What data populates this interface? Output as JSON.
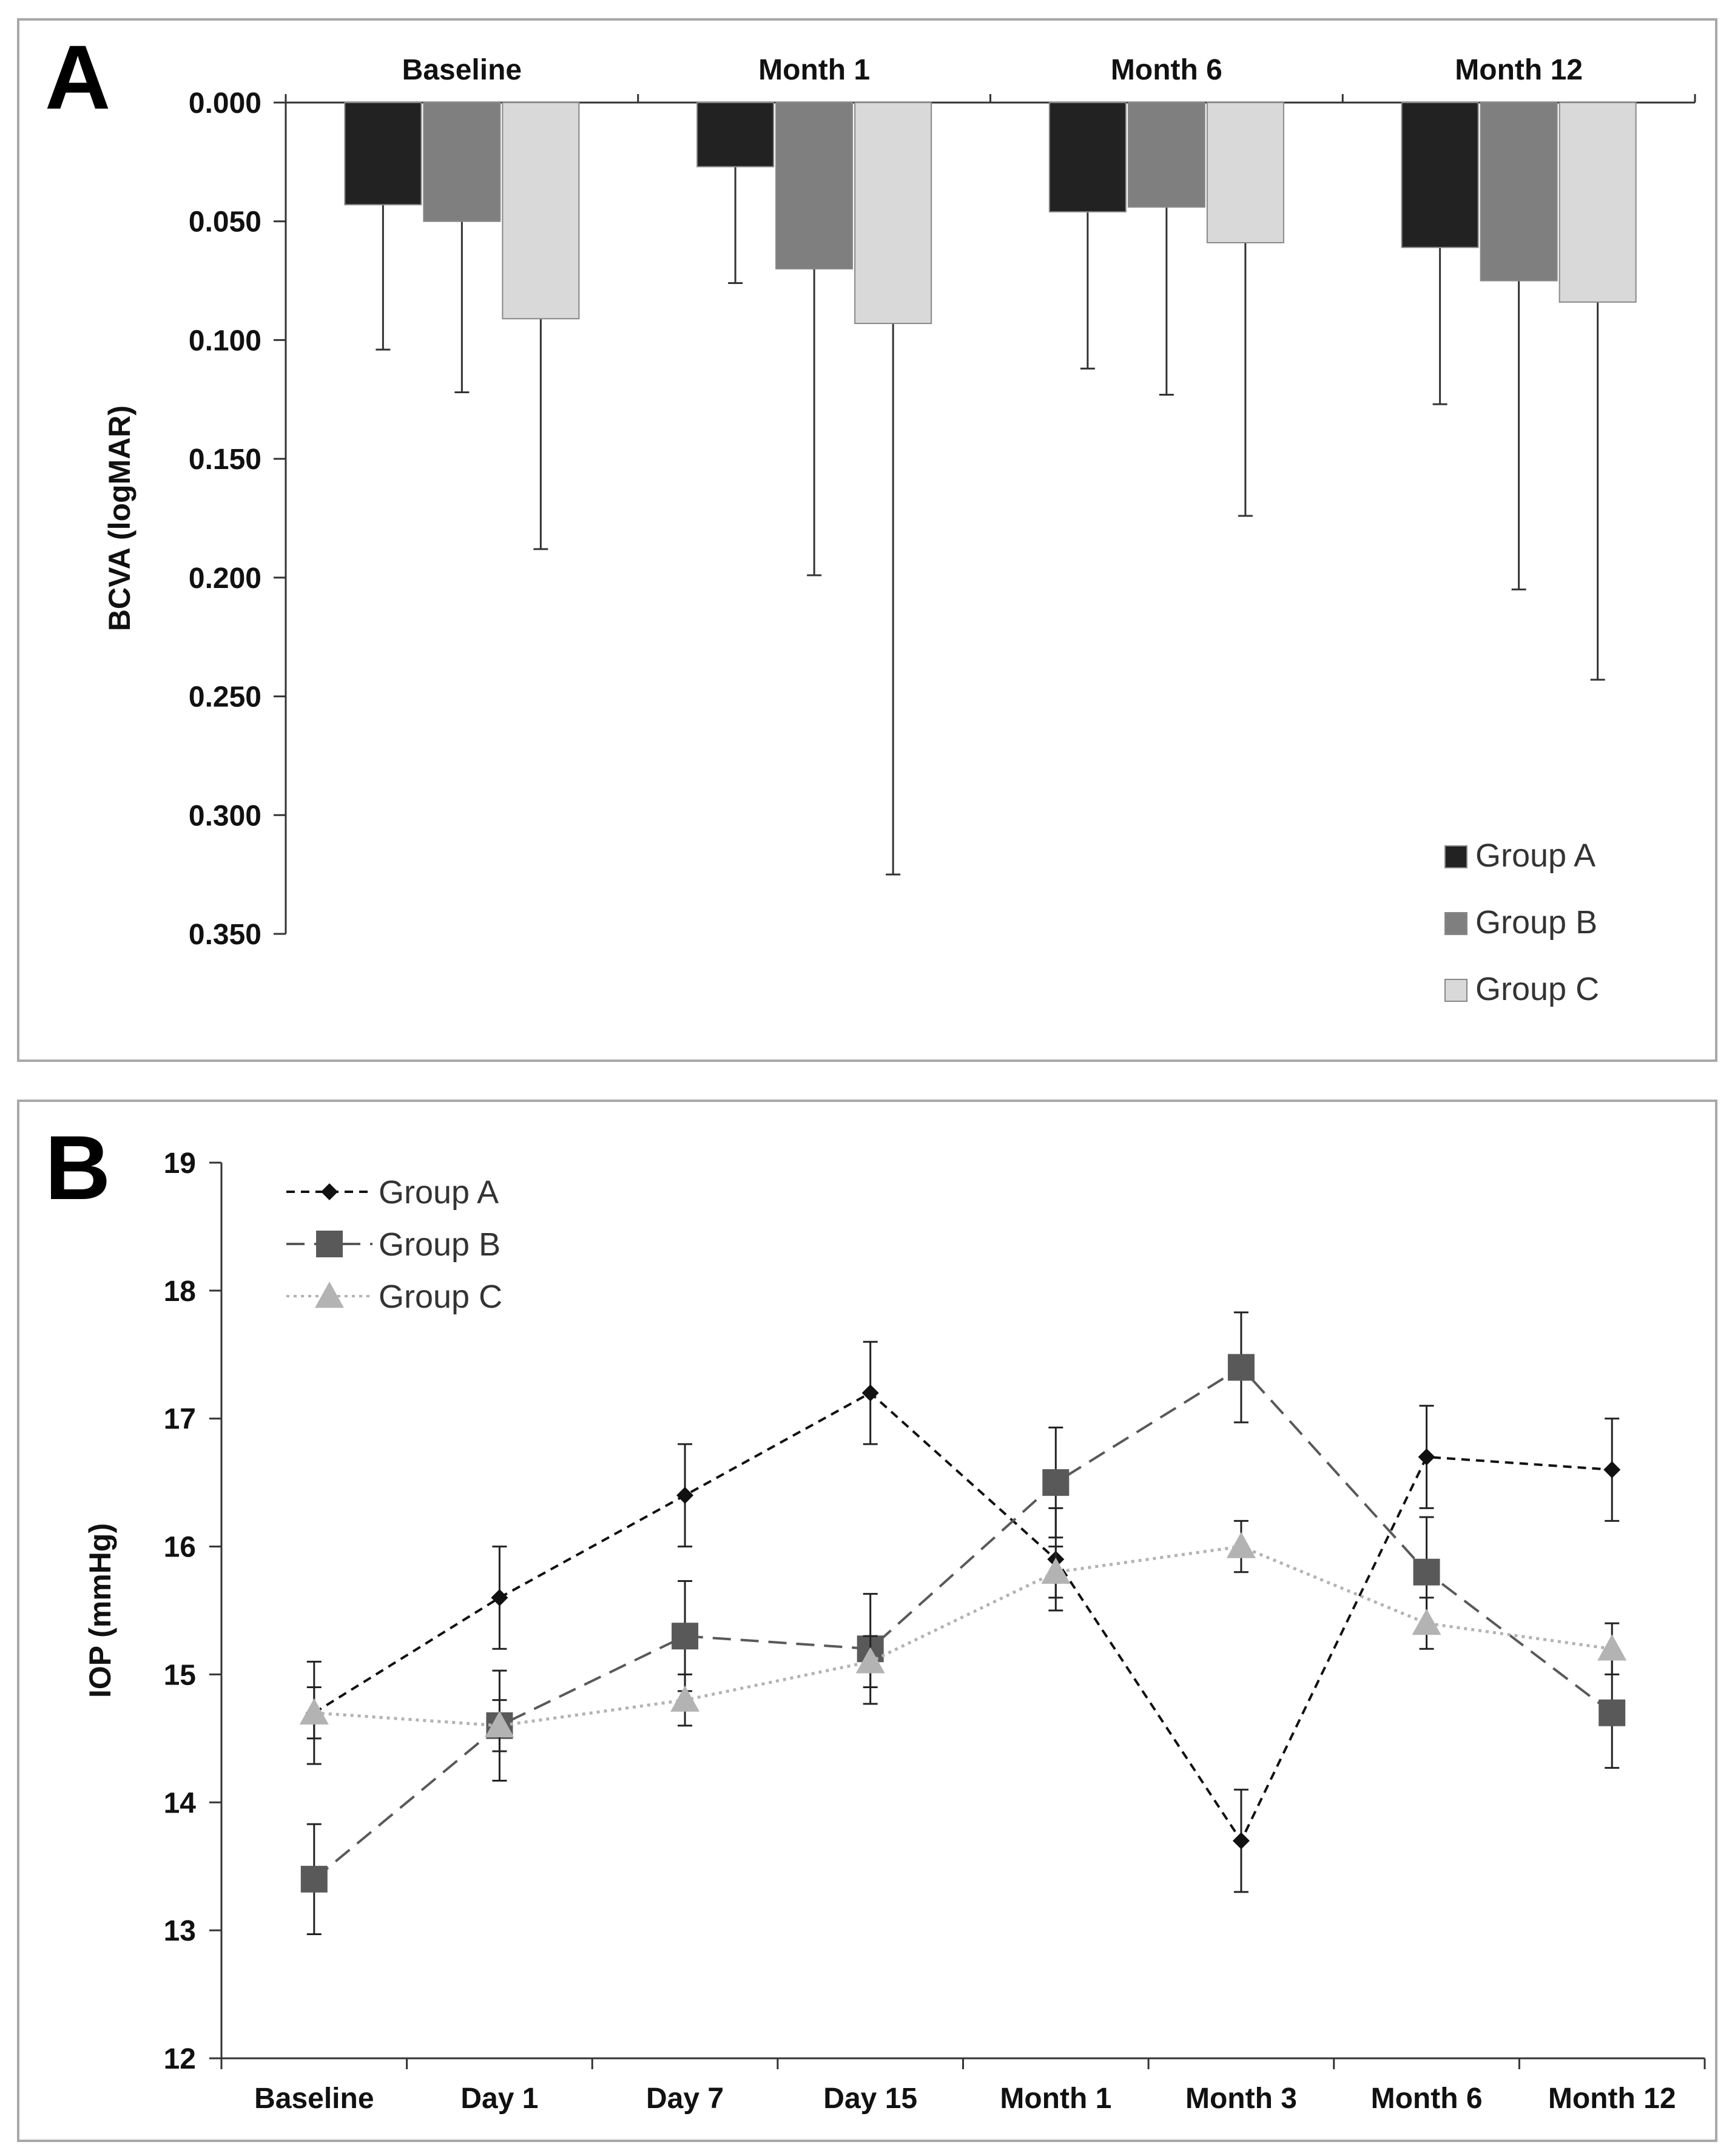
{
  "figure": {
    "panel_a_letter": "A",
    "panel_b_letter": "B"
  },
  "chart_data": [
    {
      "type": "bar",
      "panel": "A",
      "title": "",
      "xlabel": "",
      "ylabel": "BCVA (logMAR)",
      "categories": [
        "Baseline",
        "Month 1",
        "Month 6",
        "Month 12"
      ],
      "y_axis_inverted": true,
      "ylim": [
        0,
        0.35
      ],
      "yticks": [
        "0.000",
        "0.050",
        "0.100",
        "0.150",
        "0.200",
        "0.250",
        "0.300",
        "0.350"
      ],
      "series": [
        {
          "name": "Group A",
          "color": "#222222",
          "values": [
            0.043,
            0.027,
            0.046,
            0.061
          ],
          "error_upper": [
            0.104,
            0.076,
            0.112,
            0.127
          ]
        },
        {
          "name": "Group B",
          "color": "#7f7f7f",
          "values": [
            0.05,
            0.07,
            0.044,
            0.075
          ],
          "error_upper": [
            0.122,
            0.199,
            0.123,
            0.205
          ]
        },
        {
          "name": "Group C",
          "color": "#d9d9d9",
          "values": [
            0.091,
            0.093,
            0.059,
            0.084
          ],
          "error_upper": [
            0.188,
            0.325,
            0.174,
            0.243
          ]
        }
      ],
      "legend_position": "bottom-right"
    },
    {
      "type": "line",
      "panel": "B",
      "title": "",
      "xlabel": "",
      "ylabel": "IOP (mmHg)",
      "categories": [
        "Baseline",
        "Day 1",
        "Day 7",
        "Day 15",
        "Month 1",
        "Month 3",
        "Month 6",
        "Month 12"
      ],
      "ylim": [
        12,
        19
      ],
      "yticks": [
        "12",
        "13",
        "14",
        "15",
        "16",
        "17",
        "18",
        "19"
      ],
      "series": [
        {
          "name": "Group A",
          "color": "#111111",
          "marker": "diamond",
          "dash": "dashed",
          "values": [
            14.7,
            15.6,
            16.4,
            17.2,
            15.9,
            13.7,
            16.7,
            16.6
          ],
          "error": [
            0.4,
            0.4,
            0.4,
            0.4,
            0.4,
            0.4,
            0.4,
            0.4
          ]
        },
        {
          "name": "Group B",
          "color": "#595959",
          "marker": "square",
          "dash": "long-dashed",
          "values": [
            13.4,
            14.6,
            15.3,
            15.2,
            16.5,
            17.4,
            15.8,
            14.7
          ],
          "error": [
            0.43,
            0.43,
            0.43,
            0.43,
            0.43,
            0.43,
            0.43,
            0.43
          ]
        },
        {
          "name": "Group C",
          "color": "#b3b3b3",
          "marker": "triangle",
          "dash": "dotted",
          "values": [
            14.7,
            14.6,
            14.8,
            15.1,
            15.8,
            16.0,
            15.4,
            15.2
          ],
          "error": [
            0.2,
            0.2,
            0.2,
            0.2,
            0.2,
            0.2,
            0.2,
            0.2
          ]
        }
      ],
      "legend_position": "top-left"
    }
  ]
}
